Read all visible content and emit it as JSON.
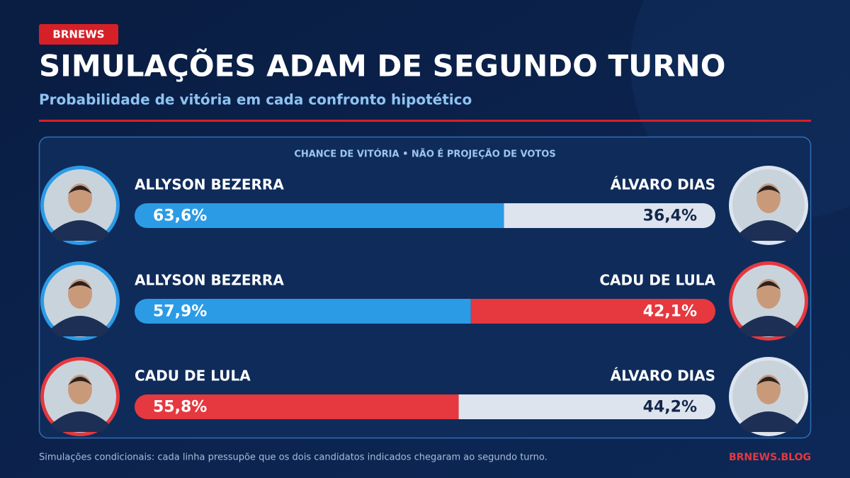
{
  "badge": "BRNEWS",
  "title": "SIMULAÇÕES ADAM DE SEGUNDO TURNO",
  "subtitle": "Probabilidade de vitória em cada confronto hipotético",
  "panel_label": "CHANCE DE VITÓRIA • NÃO É PROJEÇÃO DE VOTOS",
  "matchups": [
    {
      "left": {
        "name": "ALLYSON BEZERRA",
        "value": 63.6,
        "value_label": "63,6%",
        "color": "#2b9be6"
      },
      "right": {
        "name": "ÁLVARO DIAS",
        "value": 36.4,
        "value_label": "36,4%",
        "color": "#dde4ee"
      }
    },
    {
      "left": {
        "name": "ALLYSON BEZERRA",
        "value": 57.9,
        "value_label": "57,9%",
        "color": "#2b9be6"
      },
      "right": {
        "name": "CADU DE LULA",
        "value": 42.1,
        "value_label": "42,1%",
        "color": "#e5383f"
      }
    },
    {
      "left": {
        "name": "CADU DE LULA",
        "value": 55.8,
        "value_label": "55,8%",
        "color": "#e5383f"
      },
      "right": {
        "name": "ÁLVARO DIAS",
        "value": 44.2,
        "value_label": "44,2%",
        "color": "#dde4ee"
      }
    }
  ],
  "footnote": "Simulações condicionais: cada linha pressupõe que os dois candidatos indicados chegaram ao segundo turno.",
  "source": "BRNEWS.BLOG"
}
